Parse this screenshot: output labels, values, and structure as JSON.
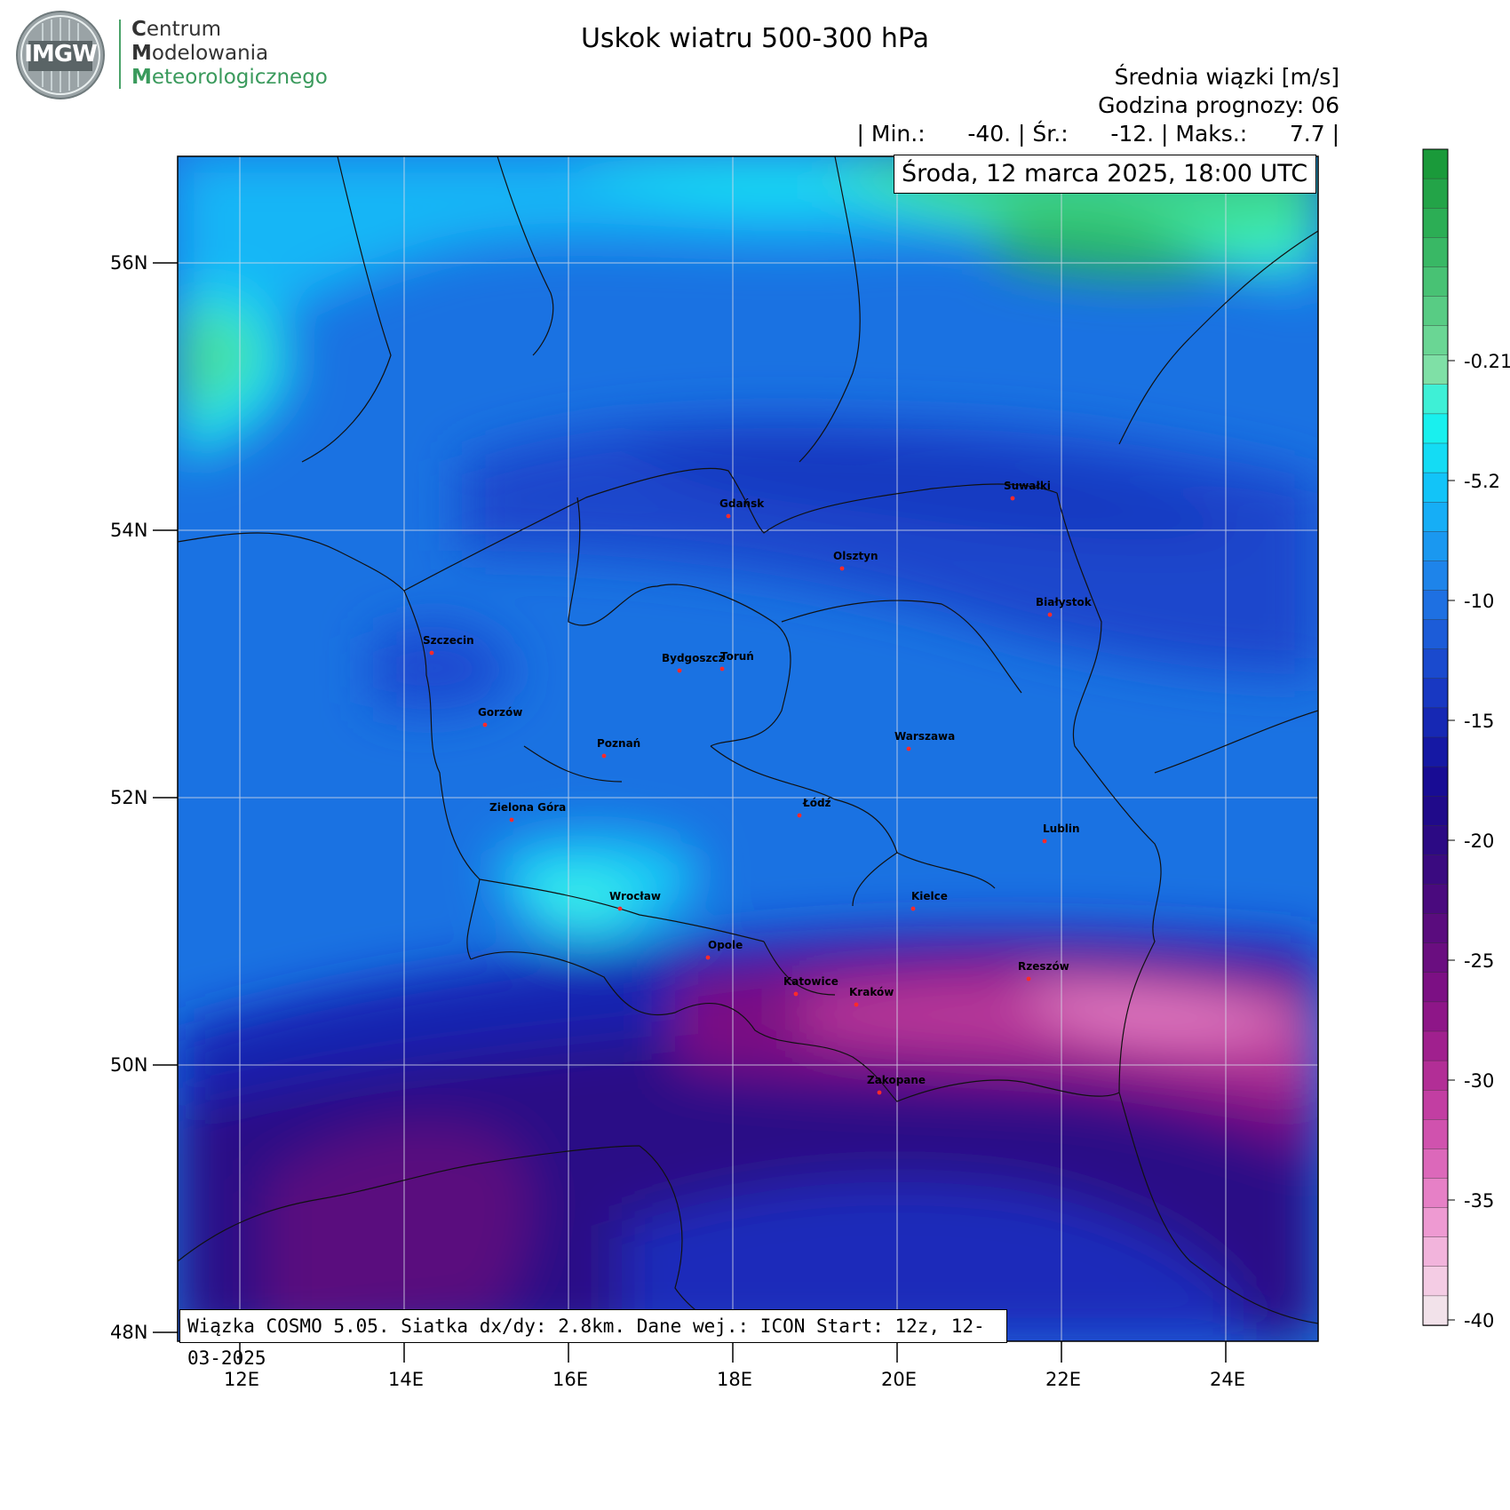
{
  "logo": {
    "emblem_text": "IMGW",
    "line1_initial": "C",
    "line1_rest": "entrum",
    "line2_initial": "M",
    "line2_rest": "odelowania",
    "line3_initial": "M",
    "line3_rest": "eteorologicznego"
  },
  "title": "Uskok wiatru  500-300 hPa",
  "header": {
    "line1": "Średnia wiązki [m/s]",
    "line2": "Godzina prognozy: 06",
    "line3": "| Min.:      -40. | Śr.:      -12. | Maks.:      7.7 |"
  },
  "datetime": "Środa, 12 marca 2025, 18:00 UTC",
  "footer": "Wiązka COSMO 5.05. Siatka dx/dy: 2.8km. Dane wej.: ICON Start: 12z, 12-03-2025",
  "axes": {
    "lat_labels": [
      "56N",
      "54N",
      "52N",
      "50N",
      "48N"
    ],
    "lat_values": [
      56,
      54,
      52,
      50,
      48
    ],
    "lon_labels": [
      "12E",
      "14E",
      "16E",
      "18E",
      "20E",
      "22E",
      "24E"
    ],
    "lon_values": [
      12,
      14,
      16,
      18,
      20,
      22,
      24
    ]
  },
  "colorbar": {
    "labels": [
      "-0.215",
      "-5.2",
      "-10",
      "-15",
      "-20",
      "-25",
      "-30",
      "-35",
      "-40"
    ],
    "colors": [
      "#1a9a3a",
      "#23a448",
      "#2cae55",
      "#39b865",
      "#48c274",
      "#58cc84",
      "#6ad694",
      "#7fe0a6",
      "#3ef0d6",
      "#19f0ee",
      "#14dcf4",
      "#12c4f8",
      "#16aef6",
      "#1a98f0",
      "#1e84ea",
      "#1e70e2",
      "#1c5cd8",
      "#1a4ace",
      "#1838c2",
      "#1628b4",
      "#1518a4",
      "#180c94",
      "#200a8a",
      "#2c0a84",
      "#3a0a80",
      "#4a0a7e",
      "#5a0c7e",
      "#6a0e80",
      "#7c1084",
      "#8e1688",
      "#a0208e",
      "#b22e96",
      "#c23ea2",
      "#d052ae",
      "#dc68ba",
      "#e680c6",
      "#ee9ad2",
      "#f2b4dc",
      "#f4cce4",
      "#f2e2ea"
    ]
  },
  "cities": [
    {
      "name": "Gdańsk"
    },
    {
      "name": "Olsztyn"
    },
    {
      "name": "Suwałki"
    },
    {
      "name": "Białystok"
    },
    {
      "name": "Szczecin"
    },
    {
      "name": "Bydgoszcz"
    },
    {
      "name": "Toruń"
    },
    {
      "name": "Gorzów"
    },
    {
      "name": "Poznań"
    },
    {
      "name": "Warszawa"
    },
    {
      "name": "Zielona Góra"
    },
    {
      "name": "Łódź"
    },
    {
      "name": "Lublin"
    },
    {
      "name": "Wrocław"
    },
    {
      "name": "Kielce"
    },
    {
      "name": "Opole"
    },
    {
      "name": "Rzeszów"
    },
    {
      "name": "Katowice"
    },
    {
      "name": "Kraków"
    },
    {
      "name": "Zakopane"
    }
  ]
}
